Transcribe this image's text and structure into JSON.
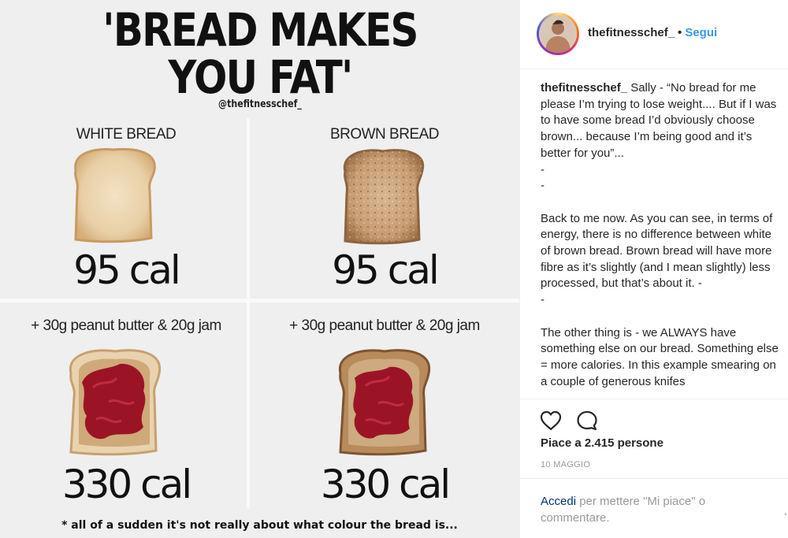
{
  "infographic": {
    "headline_line1": "'BREAD MAKES",
    "headline_line2": "YOU FAT'",
    "handle": "@thefitnesschef_",
    "white_bread_label": "WHITE BREAD",
    "brown_bread_label": "BROWN BREAD",
    "white_bread_cal": "95 cal",
    "brown_bread_cal": "95 cal",
    "topping_label_left": "+ 30g peanut butter & 20g jam",
    "topping_label_right": "+ 30g peanut butter & 20g jam",
    "white_topped_cal": "330 cal",
    "brown_topped_cal": "330 cal",
    "footnote": "* all of a sudden it's not really about what colour the bread is..."
  },
  "header": {
    "username": "thefitnesschef_",
    "separator": "•",
    "follow_label": "Segui"
  },
  "caption": {
    "username": "thefitnesschef_",
    "text": " Sally - “No bread for me please I’m trying to lose weight.... But if I was to have some bread I’d obviously choose brown... because I’m being good and it’s better for you”...\n-\n-\n\nBack to me now. As you can see, in terms of energy, there is no difference between white of brown bread. Brown bread will have more fibre as it’s slightly (and I mean slightly) less processed, but that’s about it. -\n-\n\nThe other thing is - we ALWAYS have something else on our bread. Something else = more calories. In this example smearing on a couple of generous knifes"
  },
  "actions": {
    "like_icon": "heart-icon",
    "comment_icon": "comment-icon",
    "likes_text": "Piace a 2.415 persone",
    "date": "10 MAGGIO"
  },
  "login": {
    "link_label": "Accedi",
    "rest_text": " per mettere \"Mi piace\" o commentare.",
    "more_dots": "·"
  },
  "colors": {
    "follow_blue": "#3897f0",
    "link_navy": "#003569",
    "jam_red": "#9b1426",
    "peanut_butter": "#c9a77a"
  }
}
